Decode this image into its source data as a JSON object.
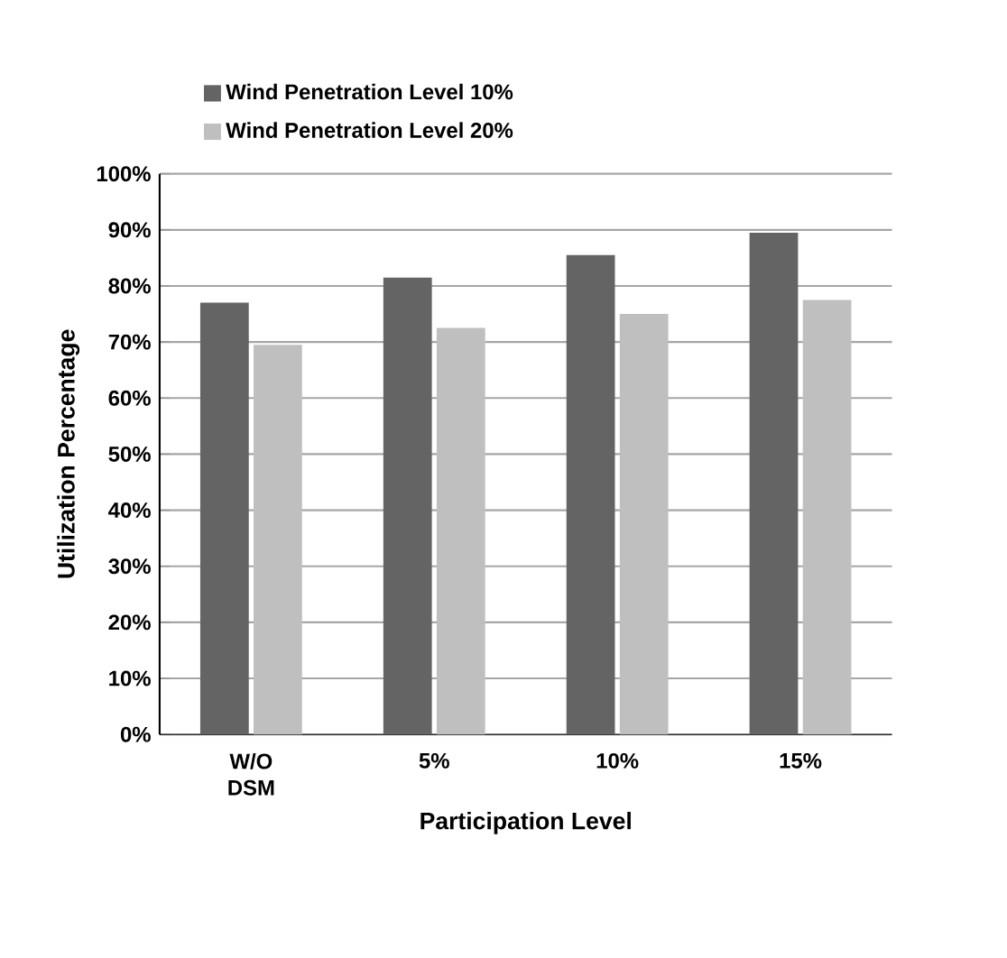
{
  "chart_data": {
    "type": "bar",
    "xlabel": "Participation Level",
    "ylabel": "Utilization Percentage",
    "categories": [
      "W/O DSM",
      "5%",
      "10%",
      "15%"
    ],
    "series": [
      {
        "name": "Wind Penetration Level 10%",
        "color": "#646464",
        "values": [
          77,
          81.5,
          85.5,
          89.5
        ]
      },
      {
        "name": "Wind Penetration Level 20%",
        "color": "#bfbfbf",
        "values": [
          69.5,
          72.5,
          75,
          77.5
        ]
      }
    ],
    "ylim": [
      0,
      100
    ],
    "yticks": [
      {
        "value": 0,
        "label": "0%"
      },
      {
        "value": 10,
        "label": "10%"
      },
      {
        "value": 20,
        "label": "20%"
      },
      {
        "value": 30,
        "label": "30%"
      },
      {
        "value": 40,
        "label": "40%"
      },
      {
        "value": 50,
        "label": "50%"
      },
      {
        "value": 60,
        "label": "60%"
      },
      {
        "value": 70,
        "label": "70%"
      },
      {
        "value": 80,
        "label": "80%"
      },
      {
        "value": 90,
        "label": "90%"
      },
      {
        "value": 100,
        "label": "100%"
      }
    ],
    "grid": "y",
    "legend": "top"
  }
}
